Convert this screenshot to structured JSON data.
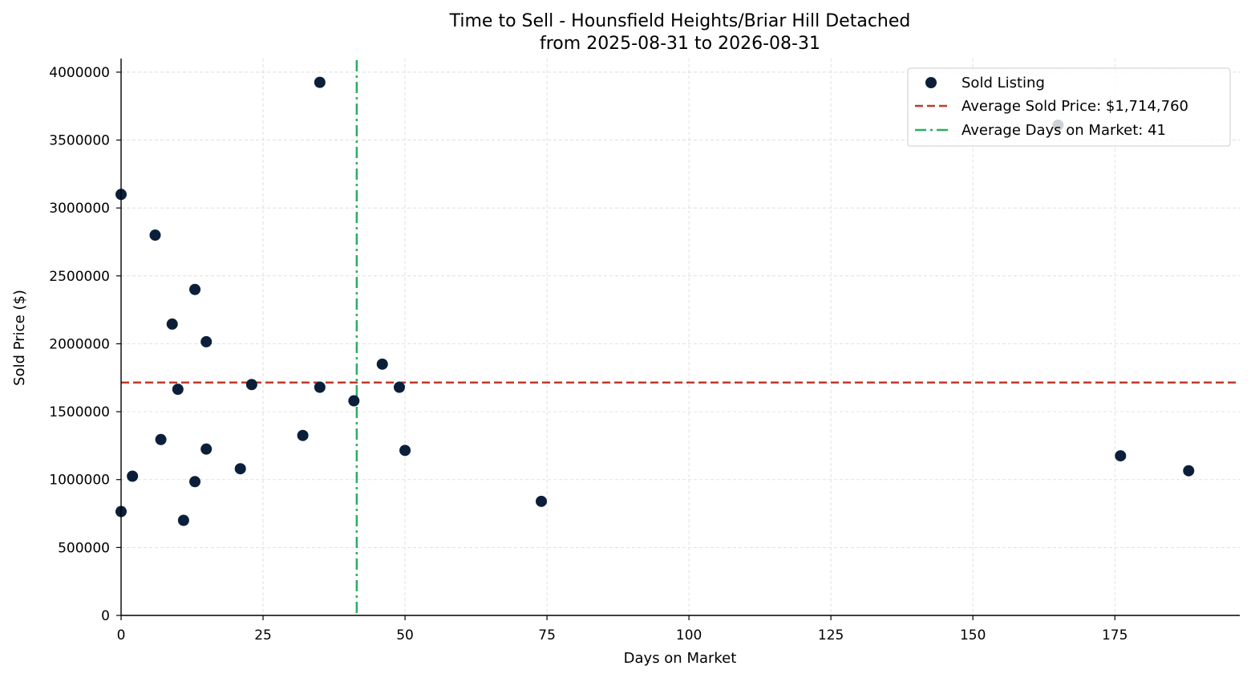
{
  "chart_data": {
    "type": "scatter",
    "title": "Time to Sell - Hounsfield Heights/Briar Hill Detached",
    "subtitle": "from 2025-08-31 to 2026-08-31",
    "xlabel": "Days on Market",
    "ylabel": "Sold Price ($)",
    "xlim": [
      0,
      197
    ],
    "ylim": [
      0,
      4100000
    ],
    "xticks": [
      0,
      25,
      50,
      75,
      100,
      125,
      150,
      175
    ],
    "yticks": [
      0,
      500000,
      1000000,
      1500000,
      2000000,
      2500000,
      3000000,
      3500000,
      4000000
    ],
    "grid": true,
    "legend_position": "top-right",
    "series": [
      {
        "name": "Sold Listing",
        "color": "#0b1f3a",
        "points": [
          {
            "x": 0,
            "y": 3100000
          },
          {
            "x": 0,
            "y": 765000
          },
          {
            "x": 2,
            "y": 1025000
          },
          {
            "x": 6,
            "y": 2800000
          },
          {
            "x": 7,
            "y": 1295000
          },
          {
            "x": 9,
            "y": 2145000
          },
          {
            "x": 10,
            "y": 1665000
          },
          {
            "x": 11,
            "y": 700000
          },
          {
            "x": 13,
            "y": 2400000
          },
          {
            "x": 13,
            "y": 985000
          },
          {
            "x": 15,
            "y": 2015000
          },
          {
            "x": 15,
            "y": 1225000
          },
          {
            "x": 21,
            "y": 1080000
          },
          {
            "x": 23,
            "y": 1700000
          },
          {
            "x": 32,
            "y": 1325000
          },
          {
            "x": 35,
            "y": 3925000
          },
          {
            "x": 35,
            "y": 1680000
          },
          {
            "x": 41,
            "y": 1580000
          },
          {
            "x": 46,
            "y": 1850000
          },
          {
            "x": 49,
            "y": 1680000
          },
          {
            "x": 50,
            "y": 1215000
          },
          {
            "x": 74,
            "y": 840000
          },
          {
            "x": 165,
            "y": 3610000
          },
          {
            "x": 176,
            "y": 1175000
          },
          {
            "x": 188,
            "y": 1065000
          }
        ]
      }
    ],
    "reference_lines": [
      {
        "orientation": "horizontal",
        "value": 1714760,
        "label": "Average Sold Price: $1,714,760",
        "color": "#c0392b",
        "style": "dashed"
      },
      {
        "orientation": "vertical",
        "value": 41.5,
        "label": "Average Days on Market: 41",
        "color": "#27ae60",
        "style": "dashdot"
      }
    ]
  }
}
